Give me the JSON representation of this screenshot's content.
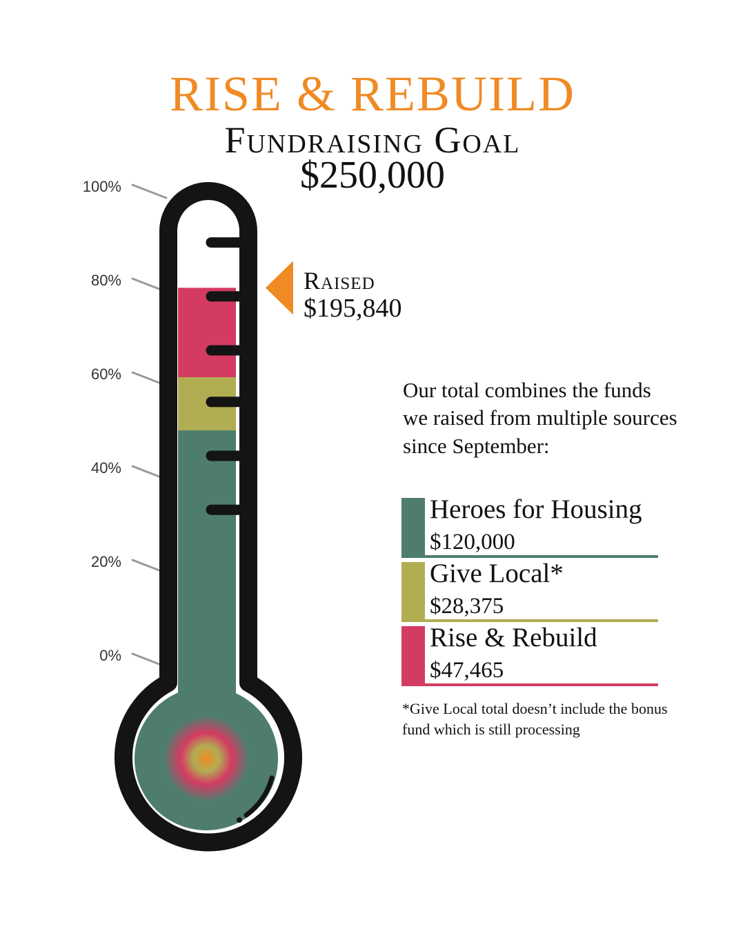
{
  "title": "RISE & REBUILD",
  "subtitle": "Fundraising Goal",
  "goal_amount": "$250,000",
  "raised": {
    "label": "Raised",
    "value": "$195,840"
  },
  "note": "Our total combines the funds we raised from multiple sources since September:",
  "footnote": "*Give Local total doesn’t include the bonus fund which is still processing",
  "colors": {
    "orange": "#f08a24",
    "green": "#4e7d6e",
    "olive": "#b1ad53",
    "pink": "#d43b62",
    "outline": "#141414"
  },
  "legend": [
    {
      "name": "Heroes for Housing",
      "value": "$120,000",
      "color": "#4e7d6e"
    },
    {
      "name": "Give Local*",
      "value": "$28,375",
      "color": "#b1ad53"
    },
    {
      "name": "Rise & Rebuild",
      "value": "$47,465",
      "color": "#d43b62"
    }
  ],
  "chart_data": {
    "type": "bar",
    "goal": 250000,
    "raised": 195840,
    "scale_labels": [
      "100%",
      "80%",
      "60%",
      "40%",
      "20%",
      "0%"
    ],
    "ylim": [
      0,
      100
    ],
    "series": [
      {
        "name": "Heroes for Housing",
        "value": 120000
      },
      {
        "name": "Give Local*",
        "value": 28375
      },
      {
        "name": "Rise & Rebuild",
        "value": 47465
      }
    ]
  }
}
